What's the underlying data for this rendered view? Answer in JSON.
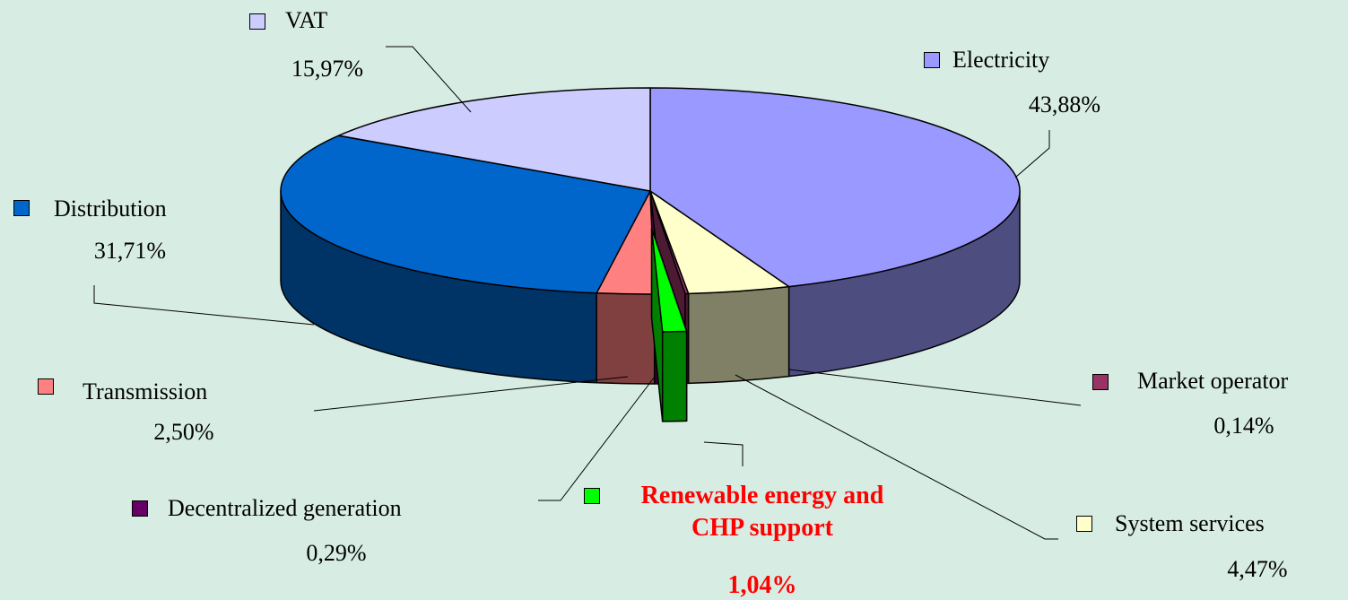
{
  "chart_data": {
    "type": "pie",
    "categories": [
      "Electricity",
      "System services",
      "Market operator",
      "Renewable energy and CHP support",
      "Decentralized generation",
      "Transmission",
      "Distribution",
      "VAT"
    ],
    "values": [
      43.88,
      4.47,
      0.14,
      1.04,
      0.29,
      2.5,
      31.71,
      15.97
    ],
    "value_labels": [
      "43,88%",
      "4,47%",
      "0,14%",
      "1,04%",
      "0,29%",
      "2,50%",
      "31,71%",
      "15,97%"
    ],
    "colors": [
      "#9999ff",
      "#ffffcc",
      "#993366",
      "#00ff00",
      "#660066",
      "#ff8080",
      "#0066cc",
      "#ccccff"
    ]
  }
}
